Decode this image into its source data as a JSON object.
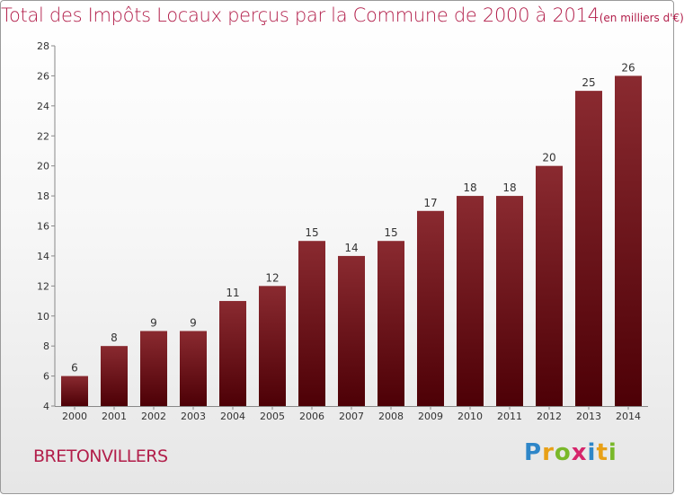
{
  "title": {
    "main": "Total des Impôts Locaux perçus par la Commune de 2000 à 2014",
    "unit": "(en milliers d'€)"
  },
  "commune": "BRETONVILLERS",
  "logo": {
    "letters": [
      "P",
      "r",
      "o",
      "x",
      "i",
      "t",
      "i"
    ],
    "colors": [
      "#2e86c8",
      "#e8a017",
      "#79b829",
      "#d6256b",
      "#2e86c8",
      "#e8a017",
      "#79b829"
    ]
  },
  "chart_data": {
    "type": "bar",
    "title": "Total des Impôts Locaux perçus par la Commune de 2000 à 2014 (en milliers d'€)",
    "categories": [
      "2000",
      "2001",
      "2002",
      "2003",
      "2004",
      "2005",
      "2006",
      "2007",
      "2008",
      "2009",
      "2010",
      "2011",
      "2012",
      "2013",
      "2014"
    ],
    "values": [
      6,
      8,
      9,
      9,
      11,
      12,
      15,
      14,
      15,
      17,
      18,
      18,
      20,
      25,
      26
    ],
    "data_labels": [
      "6",
      "8",
      "9",
      "9",
      "11",
      "12",
      "15",
      "14",
      "15",
      "17",
      "18",
      "18",
      "20",
      "25",
      "26"
    ],
    "yticks": [
      "4",
      "6",
      "8",
      "10",
      "12",
      "14",
      "16",
      "18",
      "20",
      "22",
      "24",
      "26",
      "28"
    ],
    "ylim": [
      4,
      28
    ],
    "xlabel": "",
    "ylabel": "",
    "bar_color": "#7a1a1f",
    "legend": "none"
  }
}
